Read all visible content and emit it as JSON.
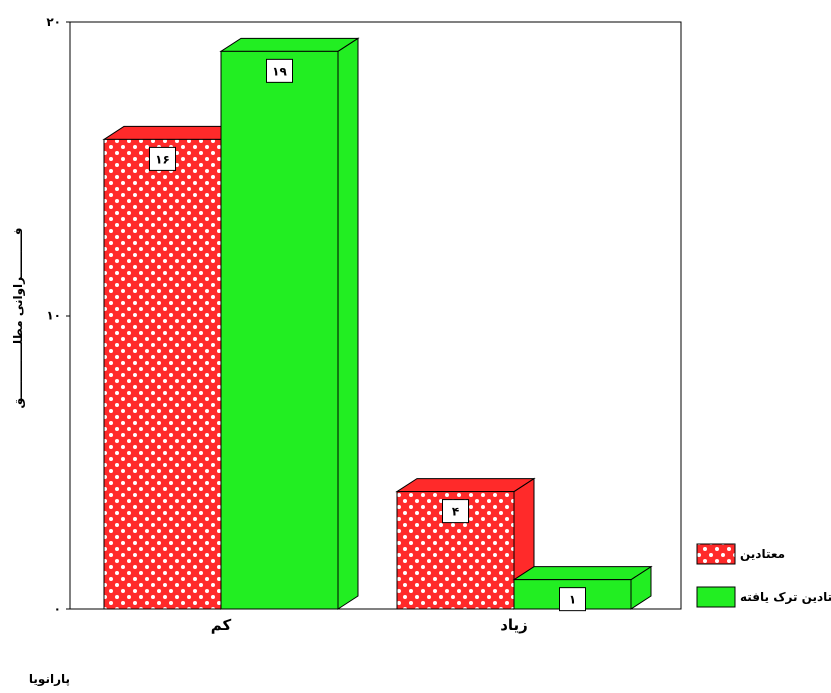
{
  "chart_data": {
    "type": "bar",
    "categories": [
      "کم",
      "زیاد"
    ],
    "series": [
      {
        "name": "معتادین",
        "values": [
          16,
          4
        ],
        "value_labels": [
          "۱۶",
          "۴"
        ],
        "color": "#ff2a2a",
        "pattern": "white-dot-checker"
      },
      {
        "name": "معتادین ترک یافته",
        "values": [
          19,
          1
        ],
        "value_labels": [
          "۱۹",
          "۱"
        ],
        "color": "#22ee22",
        "pattern": "solid"
      }
    ],
    "ylim": [
      0,
      20
    ],
    "yticks": [
      {
        "value": 0,
        "label": "۰"
      },
      {
        "value": 10,
        "label": "۱۰"
      },
      {
        "value": 20,
        "label": "۲۰"
      }
    ],
    "xlabel": "پارانویا",
    "ylabel": "فــــــــــراوانی مطلـــــــــــــق",
    "legend_position": "right",
    "grid": false,
    "style": "3d"
  }
}
